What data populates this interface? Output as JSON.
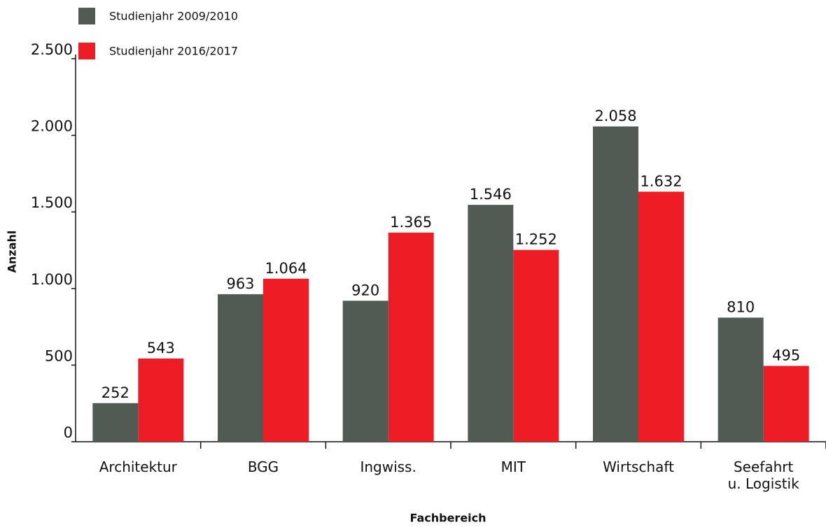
{
  "chart_data": {
    "type": "bar",
    "xlabel": "Fachbereich",
    "ylabel": "Anzahl",
    "categories": [
      "Architektur",
      "BGG",
      "Ingwiss.",
      "MIT",
      "Wirtschaft",
      "Seefahrt\nu. Logistik"
    ],
    "series": [
      {
        "name": "Studienjahr 2009/2010",
        "color": "#515a53",
        "values": [
          252,
          963,
          920,
          1546,
          2058,
          810
        ],
        "value_labels": [
          "252",
          "963",
          "920",
          "1.546",
          "2.058",
          "810"
        ]
      },
      {
        "name": "Studienjahr 2016/2017",
        "color": "#ee1c25",
        "values": [
          543,
          1064,
          1365,
          1252,
          1632,
          495
        ],
        "value_labels": [
          "543",
          "1.064",
          "1.365",
          "1.252",
          "1.632",
          "495"
        ]
      }
    ],
    "ylim": [
      0,
      2500
    ],
    "yticks": [
      0,
      500,
      {
        "value": 1000,
        "label": "1.000"
      },
      {
        "value": 1500,
        "label": "1.500"
      },
      {
        "value": 2000,
        "label": "2.000"
      },
      {
        "value": 2500,
        "label": "2.500"
      }
    ],
    "legend": "top-left"
  }
}
